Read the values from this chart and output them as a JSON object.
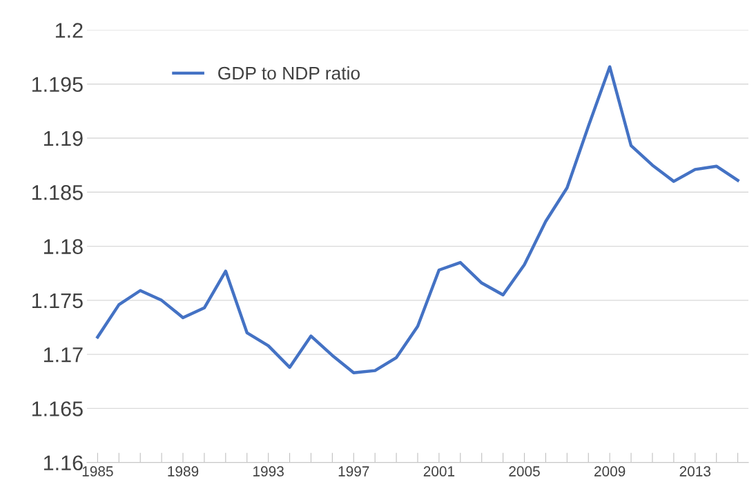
{
  "chart_data": {
    "type": "line",
    "x": [
      1985,
      1986,
      1987,
      1988,
      1989,
      1990,
      1991,
      1992,
      1993,
      1994,
      1995,
      1996,
      1997,
      1998,
      1999,
      2000,
      2001,
      2002,
      2003,
      2004,
      2005,
      2006,
      2007,
      2008,
      2009,
      2010,
      2011,
      2012,
      2013,
      2014,
      2015
    ],
    "series": [
      {
        "name": "GDP to NDP ratio",
        "color": "#4472c4",
        "values": [
          1.1716,
          1.1746,
          1.1759,
          1.175,
          1.1734,
          1.1743,
          1.1777,
          1.172,
          1.1708,
          1.1688,
          1.1717,
          1.1699,
          1.1683,
          1.1685,
          1.1697,
          1.1726,
          1.1778,
          1.1785,
          1.1766,
          1.1755,
          1.1783,
          1.1823,
          1.1854,
          1.1911,
          1.1966,
          1.1893,
          1.1875,
          1.186,
          1.1871,
          1.1874,
          1.1861
        ]
      }
    ],
    "xlim": [
      1984.5,
      2015.5
    ],
    "xticks": [
      1985,
      {
        "value": 1986,
        "label": null
      },
      {
        "value": 1987,
        "label": null
      },
      {
        "value": 1988,
        "label": null
      },
      1989,
      {
        "value": 1990,
        "label": null
      },
      {
        "value": 1991,
        "label": null
      },
      {
        "value": 1992,
        "label": null
      },
      1993,
      {
        "value": 1994,
        "label": null
      },
      {
        "value": 1995,
        "label": null
      },
      {
        "value": 1996,
        "label": null
      },
      1997,
      {
        "value": 1998,
        "label": null
      },
      {
        "value": 1999,
        "label": null
      },
      {
        "value": 2000,
        "label": null
      },
      2001,
      {
        "value": 2002,
        "label": null
      },
      {
        "value": 2003,
        "label": null
      },
      {
        "value": 2004,
        "label": null
      },
      2005,
      {
        "value": 2006,
        "label": null
      },
      {
        "value": 2007,
        "label": null
      },
      {
        "value": 2008,
        "label": null
      },
      2009,
      {
        "value": 2010,
        "label": null
      },
      {
        "value": 2011,
        "label": null
      },
      {
        "value": 2012,
        "label": null
      },
      2013,
      {
        "value": 2014,
        "label": null
      },
      {
        "value": 2015,
        "label": null
      }
    ],
    "ylim": [
      1.16,
      1.2
    ],
    "yticks": [
      1.16,
      1.165,
      1.17,
      1.175,
      1.18,
      1.185,
      1.19,
      1.195,
      1.2
    ],
    "grid": "y",
    "legend": "top left",
    "marker": "none",
    "line_style": "solid"
  }
}
